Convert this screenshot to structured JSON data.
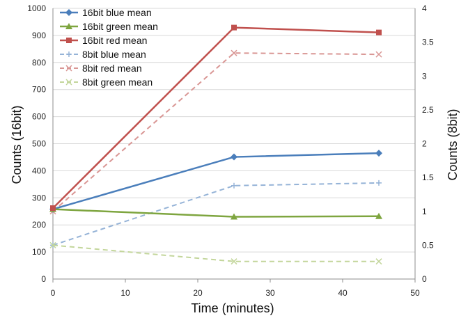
{
  "chart_data": {
    "type": "line",
    "title": "",
    "xlabel": "Time (minutes)",
    "ylabel": "Counts (16bit)",
    "y2label": "Counts (8bit)",
    "xlim": [
      0,
      50
    ],
    "ylim": [
      0,
      1000
    ],
    "y2lim": [
      0,
      4
    ],
    "x_ticks": [
      "0",
      "10",
      "20",
      "30",
      "40",
      "50"
    ],
    "y_ticks": [
      "0",
      "100",
      "200",
      "300",
      "400",
      "500",
      "600",
      "700",
      "800",
      "900",
      "1000"
    ],
    "y2_ticks": [
      "0",
      "0.5",
      "1",
      "1.5",
      "2",
      "2.5",
      "3",
      "3.5",
      "4"
    ],
    "grid": true,
    "legend_position": "top-left",
    "series": [
      {
        "name": "16bit blue mean",
        "axis": "left",
        "color": "#4a7ebb",
        "marker": "diamond",
        "dash": false,
        "x": [
          0,
          25,
          45
        ],
        "y": [
          258,
          451,
          465
        ]
      },
      {
        "name": "16bit green mean",
        "axis": "left",
        "color": "#7ea53f",
        "marker": "triangle",
        "dash": false,
        "x": [
          0,
          25,
          45
        ],
        "y": [
          258,
          230,
          232
        ]
      },
      {
        "name": "16bit red mean",
        "axis": "left",
        "color": "#c0504d",
        "marker": "square",
        "dash": false,
        "x": [
          0,
          25,
          45
        ],
        "y": [
          262,
          929,
          911
        ]
      },
      {
        "name": "8bit blue mean",
        "axis": "right",
        "color": "#95b3d7",
        "marker": "plus",
        "dash": true,
        "x": [
          0,
          25,
          45
        ],
        "y": [
          0.5,
          1.38,
          1.42
        ]
      },
      {
        "name": "8bit red mean",
        "axis": "right",
        "color": "#d99694",
        "marker": "x",
        "dash": true,
        "x": [
          0,
          25,
          45
        ],
        "y": [
          1.0,
          3.34,
          3.32
        ]
      },
      {
        "name": "8bit green mean",
        "axis": "right",
        "color": "#c3d69b",
        "marker": "x",
        "dash": true,
        "x": [
          0,
          25,
          45
        ],
        "y": [
          0.5,
          0.26,
          0.26
        ]
      }
    ]
  }
}
